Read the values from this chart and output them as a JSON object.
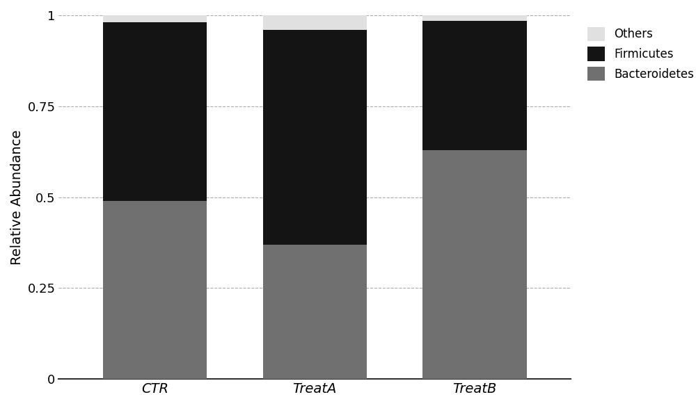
{
  "categories": [
    "CTR",
    "TreatA",
    "TreatB"
  ],
  "bacteroidetes": [
    0.49,
    0.37,
    0.63
  ],
  "firmicutes": [
    0.49,
    0.59,
    0.355
  ],
  "others": [
    0.02,
    0.04,
    0.015
  ],
  "color_bacteroidetes": "#707070",
  "color_firmicutes": "#141414",
  "color_others": "#e0e0e0",
  "ylabel": "Relative Abundance",
  "ylim": [
    0,
    1.0
  ],
  "yticks": [
    0,
    0.25,
    0.5,
    0.75,
    1.0
  ],
  "ytick_labels": [
    "0",
    "0.25",
    "0.5",
    "0.75",
    "1"
  ],
  "legend_labels": [
    "Others",
    "Firmicutes",
    "Bacteroidetes"
  ],
  "bar_width": 0.65,
  "grid_color": "#aaaaaa",
  "font_style": "italic"
}
